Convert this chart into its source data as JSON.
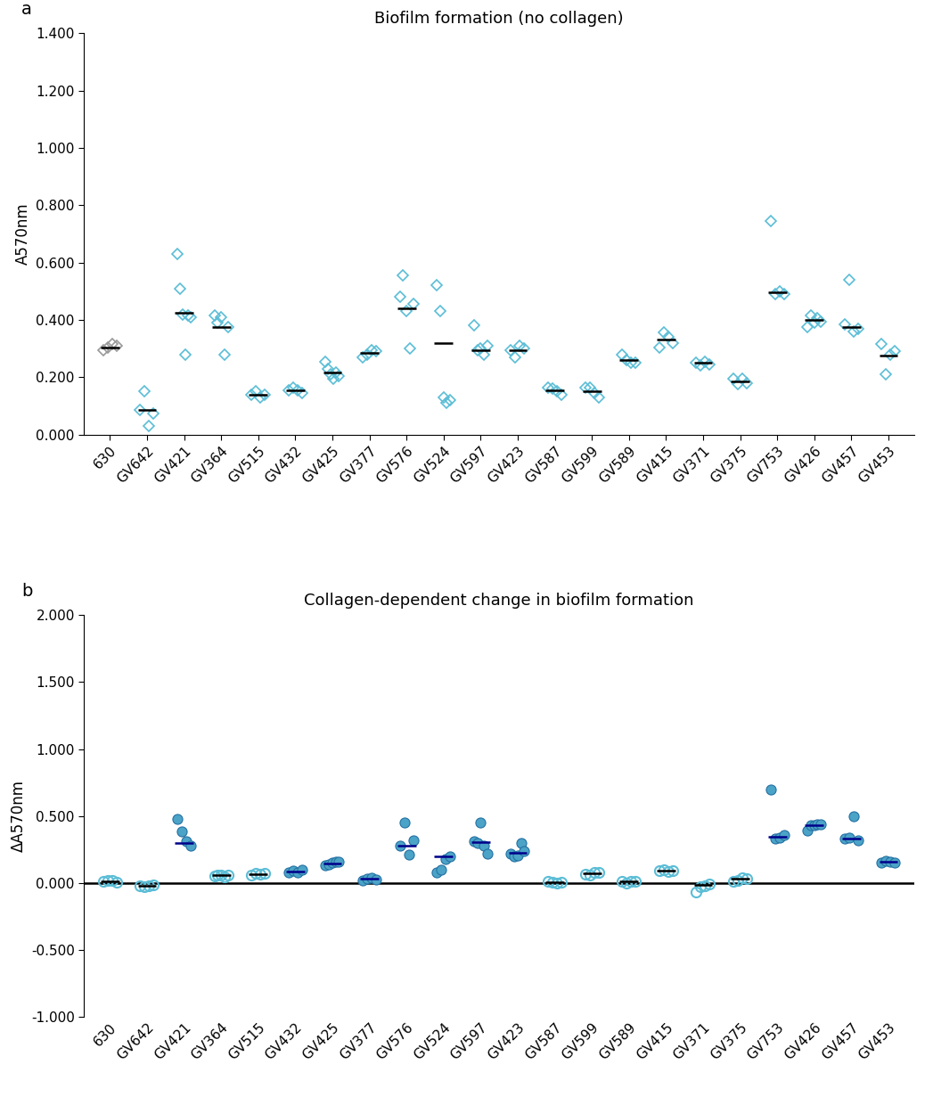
{
  "categories": [
    "630",
    "GV642",
    "GV421",
    "GV364",
    "GV515",
    "GV432",
    "GV425",
    "GV377",
    "GV576",
    "GV524",
    "GV597",
    "GV423",
    "GV587",
    "GV599",
    "GV589",
    "GV415",
    "GV371",
    "GV375",
    "GV753",
    "GV426",
    "GV457",
    "GV453"
  ],
  "panel_a": {
    "title": "Biofilm formation (no collagen)",
    "ylabel": "A570nm",
    "ylim": [
      0.0,
      1.4
    ],
    "yticks": [
      0.0,
      0.2,
      0.4,
      0.6,
      0.8,
      1.0,
      1.2,
      1.4
    ],
    "ytick_labels": [
      "0.000",
      "0.200",
      "0.400",
      "0.600",
      "0.800",
      "1.000",
      "1.200",
      "1.400"
    ],
    "means": [
      0.305,
      0.085,
      0.425,
      0.375,
      0.14,
      0.155,
      0.215,
      0.285,
      0.44,
      0.32,
      0.295,
      0.295,
      0.155,
      0.15,
      0.26,
      0.33,
      0.25,
      0.185,
      0.495,
      0.4,
      0.375,
      0.275
    ],
    "points": [
      [
        0.295,
        0.305,
        0.315,
        0.31
      ],
      [
        0.085,
        0.15,
        0.03,
        0.075
      ],
      [
        0.63,
        0.51,
        0.42,
        0.28,
        0.415,
        0.41
      ],
      [
        0.415,
        0.39,
        0.41,
        0.28,
        0.375
      ],
      [
        0.14,
        0.15,
        0.13,
        0.14
      ],
      [
        0.155,
        0.165,
        0.155,
        0.145
      ],
      [
        0.255,
        0.23,
        0.21,
        0.195,
        0.215,
        0.205
      ],
      [
        0.27,
        0.28,
        0.295,
        0.29
      ],
      [
        0.48,
        0.555,
        0.43,
        0.3,
        0.455
      ],
      [
        0.52,
        0.43,
        0.13,
        0.11,
        0.12
      ],
      [
        0.38,
        0.295,
        0.3,
        0.28,
        0.31
      ],
      [
        0.295,
        0.27,
        0.31,
        0.3
      ],
      [
        0.165,
        0.16,
        0.15,
        0.14
      ],
      [
        0.165,
        0.165,
        0.145,
        0.13
      ],
      [
        0.28,
        0.26,
        0.25,
        0.25
      ],
      [
        0.305,
        0.355,
        0.34,
        0.32
      ],
      [
        0.25,
        0.24,
        0.255,
        0.245
      ],
      [
        0.195,
        0.175,
        0.195,
        0.18
      ],
      [
        0.745,
        0.49,
        0.5,
        0.49
      ],
      [
        0.375,
        0.415,
        0.39,
        0.405,
        0.395
      ],
      [
        0.385,
        0.54,
        0.36,
        0.37
      ],
      [
        0.315,
        0.21,
        0.28,
        0.29
      ]
    ]
  },
  "panel_b": {
    "title": "Collagen-dependent change in biofilm formation",
    "ylabel": "ΔA570nm",
    "ylim": [
      -1.0,
      2.0
    ],
    "yticks": [
      -1.0,
      -0.5,
      0.0,
      0.5,
      1.0,
      1.5,
      2.0
    ],
    "ytick_labels": [
      "-1.000",
      "-0.500",
      "0.000",
      "0.500",
      "1.000",
      "1.500",
      "2.000"
    ],
    "means": [
      0.01,
      -0.02,
      0.295,
      0.055,
      0.065,
      0.085,
      0.145,
      0.03,
      0.275,
      0.195,
      0.305,
      0.225,
      0.005,
      0.07,
      0.01,
      0.09,
      -0.015,
      0.03,
      0.345,
      0.43,
      0.33,
      0.155
    ],
    "points": [
      [
        0.01,
        0.015,
        0.02,
        0.005
      ],
      [
        -0.02,
        -0.03,
        -0.025,
        -0.015
      ],
      [
        0.475,
        0.385,
        0.31,
        0.28
      ],
      [
        0.05,
        0.055,
        0.06,
        0.045,
        0.06
      ],
      [
        0.06,
        0.07,
        0.065,
        0.07
      ],
      [
        0.075,
        0.09,
        0.08,
        0.1
      ],
      [
        0.13,
        0.14,
        0.15,
        0.16,
        0.155
      ],
      [
        0.02,
        0.03,
        0.04,
        0.025
      ],
      [
        0.28,
        0.45,
        0.21,
        0.315
      ],
      [
        0.08,
        0.1,
        0.18,
        0.2
      ],
      [
        0.31,
        0.3,
        0.45,
        0.28,
        0.215
      ],
      [
        0.215,
        0.2,
        0.205,
        0.295,
        0.235
      ],
      [
        0.01,
        0.005,
        0.0,
        0.005
      ],
      [
        0.065,
        0.06,
        0.08,
        0.075
      ],
      [
        0.01,
        0.0,
        0.01,
        0.01
      ],
      [
        0.09,
        0.095,
        0.085,
        0.09
      ],
      [
        -0.07,
        -0.03,
        -0.02,
        -0.01
      ],
      [
        0.01,
        0.02,
        0.04,
        0.03
      ],
      [
        0.7,
        0.33,
        0.34,
        0.36
      ],
      [
        0.39,
        0.43,
        0.43,
        0.435,
        0.44
      ],
      [
        0.33,
        0.34,
        0.5,
        0.32
      ],
      [
        0.15,
        0.165,
        0.155,
        0.15
      ]
    ],
    "open_circle_indices": [
      0,
      1,
      3,
      4,
      12,
      13,
      14,
      15,
      16,
      17
    ],
    "filled_circle_indices": [
      2,
      5,
      6,
      7,
      8,
      9,
      10,
      11,
      18,
      19,
      20,
      21
    ]
  },
  "colors": {
    "cyan_color": "#5BBDD6",
    "gray_color": "#999999",
    "dark_blue": "#1A5276",
    "mean_black": "#000000",
    "mean_blue": "#00008B"
  },
  "label_fontsize": 11,
  "title_fontsize": 13,
  "ylabel_fontsize": 12,
  "panel_label_fontsize": 14
}
